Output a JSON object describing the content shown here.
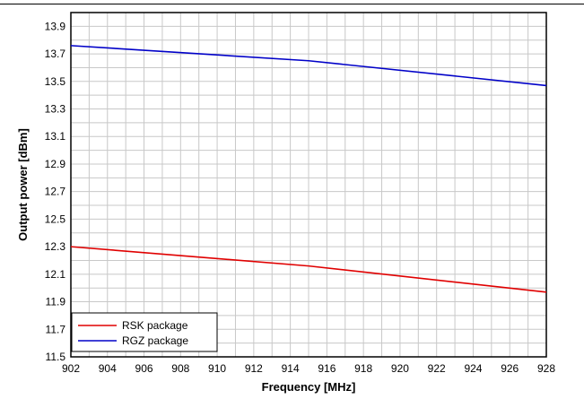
{
  "chart_data": {
    "type": "line",
    "xlabel": "Frequency [MHz]",
    "ylabel": "Output power [dBm]",
    "xlim": [
      902,
      928
    ],
    "ylim": [
      11.5,
      14.0
    ],
    "xticks": [
      "902",
      "904",
      "906",
      "908",
      "910",
      "912",
      "914",
      "916",
      "918",
      "920",
      "922",
      "924",
      "926",
      "928"
    ],
    "yticks": [
      "11.5",
      "11.7",
      "11.9",
      "12.1",
      "12.3",
      "12.5",
      "12.7",
      "12.9",
      "13.1",
      "13.3",
      "13.5",
      "13.7",
      "13.9"
    ],
    "grid": true,
    "legend_position": "bottom-left",
    "series": [
      {
        "name": "RSK package",
        "color": "#e00000",
        "x": [
          902,
          915,
          928
        ],
        "y": [
          12.3,
          12.16,
          11.97
        ]
      },
      {
        "name": "RGZ package",
        "color": "#0000c8",
        "x": [
          902,
          915,
          928
        ],
        "y": [
          13.76,
          13.65,
          13.47
        ]
      }
    ]
  }
}
